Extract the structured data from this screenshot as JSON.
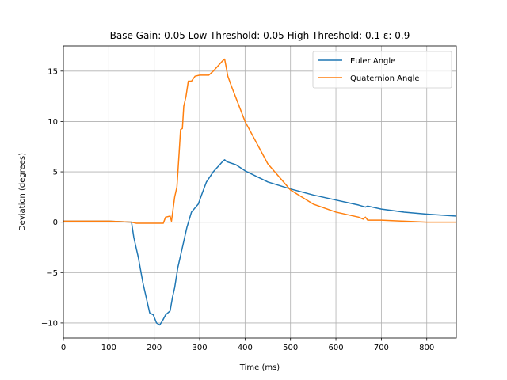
{
  "chart_data": {
    "type": "line",
    "title": "Base Gain: 0.05 Low Threshold: 0.05 High Threshold: 0.1 ε: 0.9",
    "xlabel": "Time (ms)",
    "ylabel": "Deviation (degrees)",
    "xlim": [
      0,
      865
    ],
    "ylim": [
      -11.5,
      17.5
    ],
    "xticks": [
      0,
      100,
      200,
      300,
      400,
      500,
      600,
      700,
      800
    ],
    "yticks": [
      -10,
      -5,
      0,
      5,
      10,
      15
    ],
    "xtick_labels": [
      "0",
      "100",
      "200",
      "300",
      "400",
      "500",
      "600",
      "700",
      "800"
    ],
    "ytick_labels": [
      "−10",
      "−5",
      "0",
      "5",
      "10",
      "15"
    ],
    "grid": true,
    "legend_position": "top-right",
    "series": [
      {
        "name": "Euler Angle",
        "color": "#1f77b4",
        "x": [
          0,
          50,
          100,
          150,
          155,
          165,
          175,
          185,
          190,
          198,
          205,
          212,
          218,
          225,
          235,
          240,
          245,
          252,
          262,
          272,
          282,
          297,
          305,
          315,
          330,
          340,
          350,
          355,
          360,
          380,
          400,
          450,
          500,
          550,
          600,
          650,
          665,
          670,
          700,
          750,
          800,
          865
        ],
        "y": [
          0.1,
          0.1,
          0.1,
          0.0,
          -1.5,
          -3.5,
          -6.0,
          -8.0,
          -9.0,
          -9.2,
          -10.0,
          -10.2,
          -9.8,
          -9.2,
          -8.8,
          -7.5,
          -6.5,
          -4.5,
          -2.5,
          -0.5,
          1.0,
          1.8,
          2.8,
          4.0,
          5.0,
          5.5,
          6.0,
          6.2,
          6.0,
          5.7,
          5.1,
          4.0,
          3.3,
          2.7,
          2.2,
          1.7,
          1.5,
          1.6,
          1.3,
          1.0,
          0.8,
          0.6
        ]
      },
      {
        "name": "Quaternion Angle",
        "color": "#ff7f0e",
        "x": [
          0,
          80,
          100,
          150,
          160,
          200,
          220,
          225,
          235,
          238,
          245,
          250,
          255,
          258,
          262,
          265,
          270,
          275,
          282,
          290,
          300,
          320,
          330,
          340,
          350,
          355,
          358,
          362,
          370,
          400,
          450,
          500,
          550,
          600,
          650,
          660,
          665,
          670,
          700,
          750,
          800,
          865
        ],
        "y": [
          0.1,
          0.1,
          0.1,
          0.0,
          -0.1,
          -0.1,
          -0.1,
          0.5,
          0.6,
          0.1,
          2.5,
          3.5,
          7.0,
          9.2,
          9.3,
          11.5,
          12.5,
          14.0,
          14.0,
          14.5,
          14.6,
          14.6,
          15.0,
          15.5,
          16.0,
          16.2,
          15.5,
          14.5,
          13.5,
          10.0,
          5.8,
          3.2,
          1.8,
          1.0,
          0.5,
          0.3,
          0.5,
          0.2,
          0.2,
          0.1,
          0.0,
          0.0
        ]
      }
    ]
  }
}
